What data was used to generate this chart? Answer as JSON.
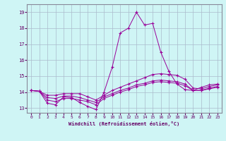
{
  "xlabel": "Windchill (Refroidissement éolien,°C)",
  "background_color": "#cff5f5",
  "grid_color": "#aabbcc",
  "line_color": "#990099",
  "xlim": [
    -0.5,
    23.5
  ],
  "ylim": [
    12.7,
    19.5
  ],
  "yticks": [
    13,
    14,
    15,
    16,
    17,
    18,
    19
  ],
  "xticks": [
    0,
    1,
    2,
    3,
    4,
    5,
    6,
    7,
    8,
    9,
    10,
    11,
    12,
    13,
    14,
    15,
    16,
    17,
    18,
    19,
    20,
    21,
    22,
    23
  ],
  "series": [
    [
      14.1,
      14.05,
      13.3,
      13.2,
      13.7,
      13.65,
      13.35,
      13.1,
      12.9,
      14.0,
      15.55,
      17.7,
      18.0,
      19.0,
      18.2,
      18.3,
      16.5,
      15.3,
      14.5,
      14.15,
      14.1,
      14.3,
      14.45,
      14.5
    ],
    [
      14.1,
      14.05,
      13.8,
      13.8,
      13.9,
      13.9,
      13.9,
      13.7,
      13.5,
      13.8,
      14.1,
      14.3,
      14.5,
      14.7,
      14.9,
      15.1,
      15.15,
      15.1,
      15.05,
      14.8,
      14.25,
      14.2,
      14.35,
      14.45
    ],
    [
      14.1,
      14.05,
      13.65,
      13.6,
      13.75,
      13.75,
      13.65,
      13.5,
      13.35,
      13.7,
      13.9,
      14.1,
      14.25,
      14.45,
      14.55,
      14.7,
      14.75,
      14.7,
      14.65,
      14.5,
      14.1,
      14.1,
      14.25,
      14.35
    ],
    [
      14.1,
      14.05,
      13.5,
      13.4,
      13.6,
      13.6,
      13.5,
      13.4,
      13.2,
      13.6,
      13.8,
      14.0,
      14.15,
      14.35,
      14.45,
      14.6,
      14.65,
      14.6,
      14.55,
      14.4,
      14.1,
      14.1,
      14.2,
      14.3
    ]
  ]
}
